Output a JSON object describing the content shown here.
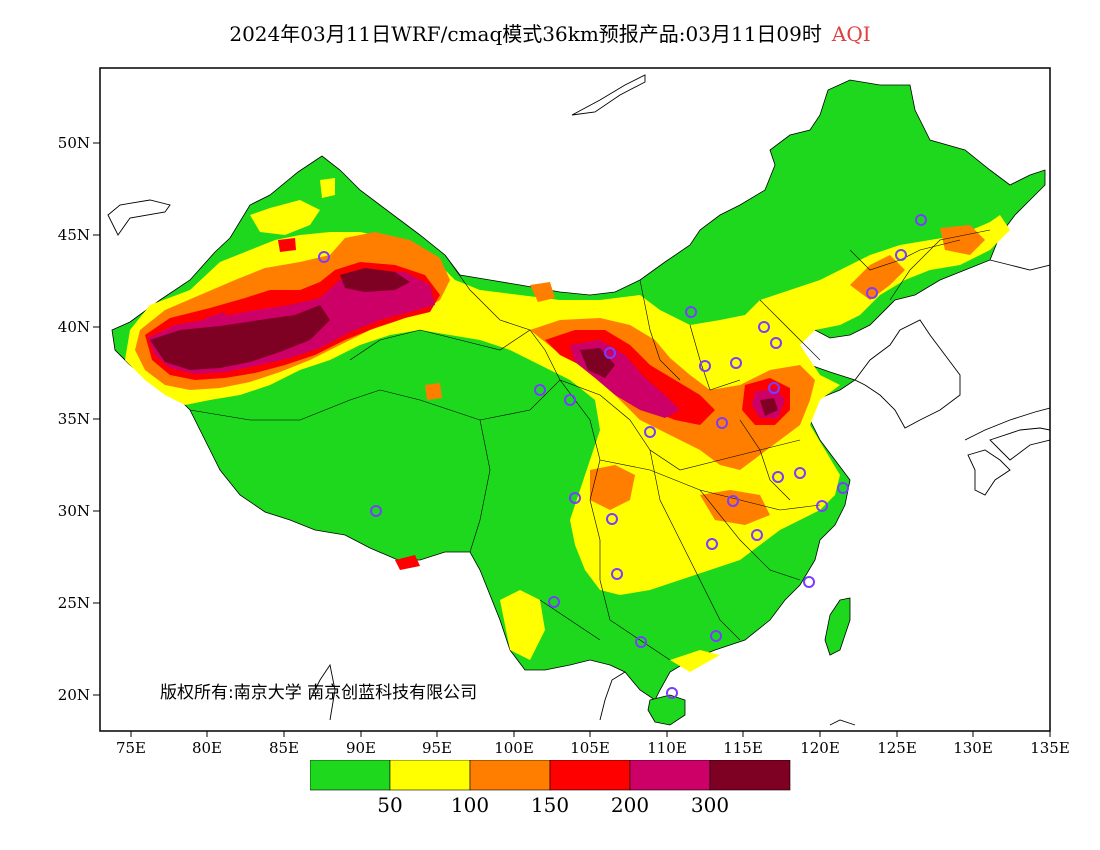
{
  "title": {
    "main": "2024年03月11日WRF/cmaq模式36km预报产品:03月11日09时",
    "product": "AQI"
  },
  "axes": {
    "lat_labels": [
      "50N",
      "45N",
      "40N",
      "35N",
      "30N",
      "25N",
      "20N"
    ],
    "lon_labels": [
      "75E",
      "80E",
      "85E",
      "90E",
      "95E",
      "100E",
      "105E",
      "110E",
      "115E",
      "120E",
      "125E",
      "130E",
      "135E"
    ],
    "lat_range": [
      18,
      54
    ],
    "lon_range": [
      73,
      135
    ]
  },
  "copyright": "版权所有:南京大学 南京创蓝科技有限公司",
  "legend": {
    "colors": [
      "#1ed81e",
      "#ffff00",
      "#ff7e00",
      "#ff0000",
      "#cc0066",
      "#7e0023"
    ],
    "labels": [
      "50",
      "100",
      "150",
      "200",
      "300"
    ]
  },
  "aqi_levels": {
    "good": "#1ed81e",
    "moderate": "#ffff00",
    "sensitive": "#ff7e00",
    "unhealthy": "#ff0000",
    "very_unhealthy": "#cc0066",
    "hazardous": "#7e0023"
  },
  "station_marker_color": "#7a3cff"
}
